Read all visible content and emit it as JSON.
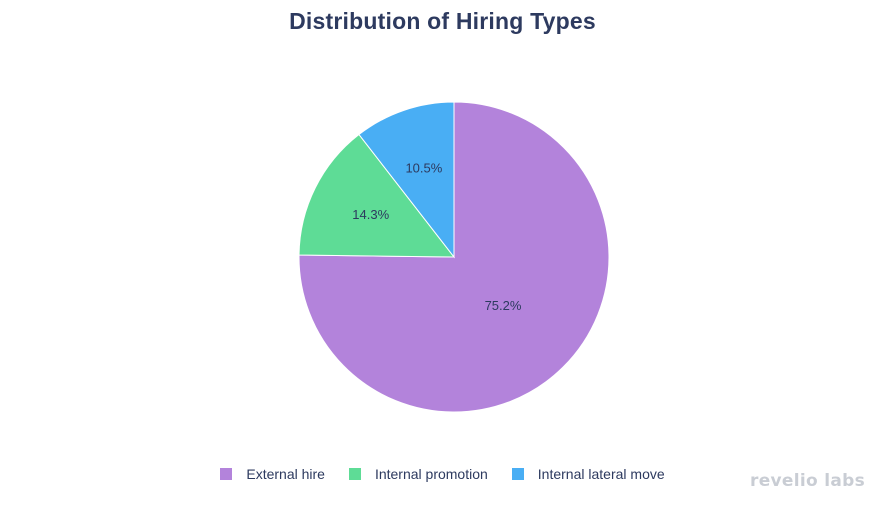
{
  "chart_data": {
    "type": "pie",
    "title": "Distribution of Hiring Types",
    "slices": [
      {
        "label": "External hire",
        "value": 75.2,
        "display": "75.2%",
        "color": "#b383db"
      },
      {
        "label": "Internal promotion",
        "value": 14.3,
        "display": "14.3%",
        "color": "#5edc96"
      },
      {
        "label": "Internal lateral move",
        "value": 10.5,
        "display": "10.5%",
        "color": "#49aef4"
      }
    ],
    "legend_position": "bottom",
    "start_angle": "12 o'clock",
    "direction": "clockwise"
  },
  "brand": "revelio labs"
}
